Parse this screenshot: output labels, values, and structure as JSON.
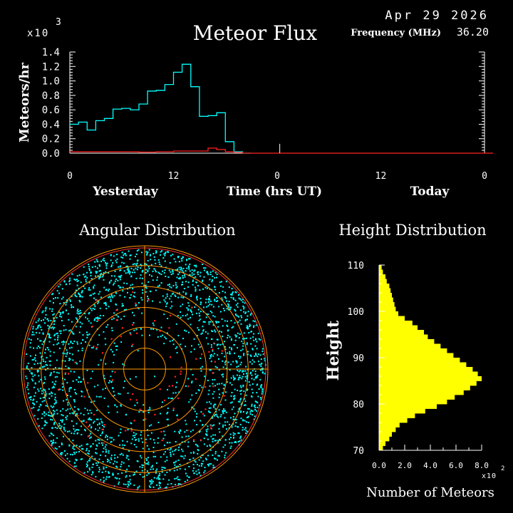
{
  "header": {
    "date": "Apr 29 2026",
    "frequency_label": "Frequency (MHz)",
    "frequency_value": "36.20"
  },
  "colors": {
    "background": "#000000",
    "yesterday": "#00ffff",
    "today_red": "#ff2020",
    "height_fill": "#ffff00",
    "polar_grid": "#ff9900",
    "axis": "#ffffff"
  },
  "chart_data": [
    {
      "type": "line",
      "title": "Meteor Flux",
      "ylabel": "Meteors/hr",
      "xlabel": "Time (hrs UT)",
      "multiplier": "x10",
      "multiplier_exp": "3",
      "ylim": [
        0,
        1.4
      ],
      "yticks": [
        "0.0",
        "0.2",
        "0.4",
        "0.6",
        "0.8",
        "1.0",
        "1.2",
        "1.4"
      ],
      "xlim": [
        0,
        48
      ],
      "xticks": [
        "0",
        "12",
        "0",
        "12",
        "0"
      ],
      "xtick_values": [
        0,
        12,
        24,
        36,
        48
      ],
      "day_labels": [
        "Yesterday",
        "Today"
      ],
      "steps": true,
      "series": [
        {
          "color": "#00ffff",
          "x": [
            0,
            1,
            2,
            3,
            4,
            5,
            6,
            7,
            8,
            9,
            10,
            11,
            12,
            13,
            14,
            15,
            16,
            17,
            18,
            19,
            20
          ],
          "values": [
            0.4,
            0.43,
            0.32,
            0.45,
            0.48,
            0.61,
            0.62,
            0.6,
            0.68,
            0.86,
            0.87,
            0.95,
            1.12,
            1.23,
            0.92,
            0.51,
            0.52,
            0.56,
            0.16,
            0.02,
            0.0
          ]
        },
        {
          "color": "#ff2020",
          "x": [
            0,
            2,
            4,
            6,
            8,
            10,
            12,
            14,
            16,
            17,
            18,
            19,
            20,
            48
          ],
          "values": [
            0.02,
            0.02,
            0.02,
            0.02,
            0.015,
            0.02,
            0.03,
            0.03,
            0.07,
            0.05,
            0.02,
            0.01,
            0.0,
            0.0
          ]
        }
      ],
      "spike_x": 24.3,
      "spike_value": 0.13
    },
    {
      "type": "scatter",
      "title": "Angular Distribution",
      "ring_count": 6,
      "colors": [
        "#00ffff",
        "#ff2020"
      ],
      "point_counts": [
        2400,
        90
      ]
    },
    {
      "type": "bar",
      "title": "Height Distribution",
      "ylabel": "Height",
      "xlabel": "Number of Meteors",
      "multiplier": "x10",
      "multiplier_exp": "2",
      "xlim": [
        0,
        8
      ],
      "xticks": [
        "0.0",
        "2.0",
        "4.0",
        "6.0",
        "8.0"
      ],
      "ylim": [
        70,
        110
      ],
      "yticks": [
        "70",
        "80",
        "90",
        "100",
        "110"
      ],
      "heights": [
        70,
        71,
        72,
        73,
        74,
        75,
        76,
        77,
        78,
        79,
        80,
        81,
        82,
        83,
        84,
        85,
        86,
        87,
        88,
        89,
        90,
        91,
        92,
        93,
        94,
        95,
        96,
        97,
        98,
        99,
        100,
        101,
        102,
        103,
        104,
        105,
        106,
        107,
        108,
        109
      ],
      "values": [
        0.3,
        0.5,
        0.8,
        1.0,
        1.3,
        1.6,
        2.2,
        2.8,
        3.6,
        4.5,
        5.3,
        5.9,
        6.6,
        7.1,
        7.6,
        8.0,
        7.7,
        7.3,
        6.8,
        6.3,
        5.8,
        5.3,
        4.8,
        4.3,
        3.8,
        3.5,
        3.0,
        2.6,
        2.0,
        1.5,
        1.3,
        1.2,
        1.1,
        1.0,
        0.9,
        0.8,
        0.6,
        0.5,
        0.3,
        0.2
      ]
    }
  ]
}
